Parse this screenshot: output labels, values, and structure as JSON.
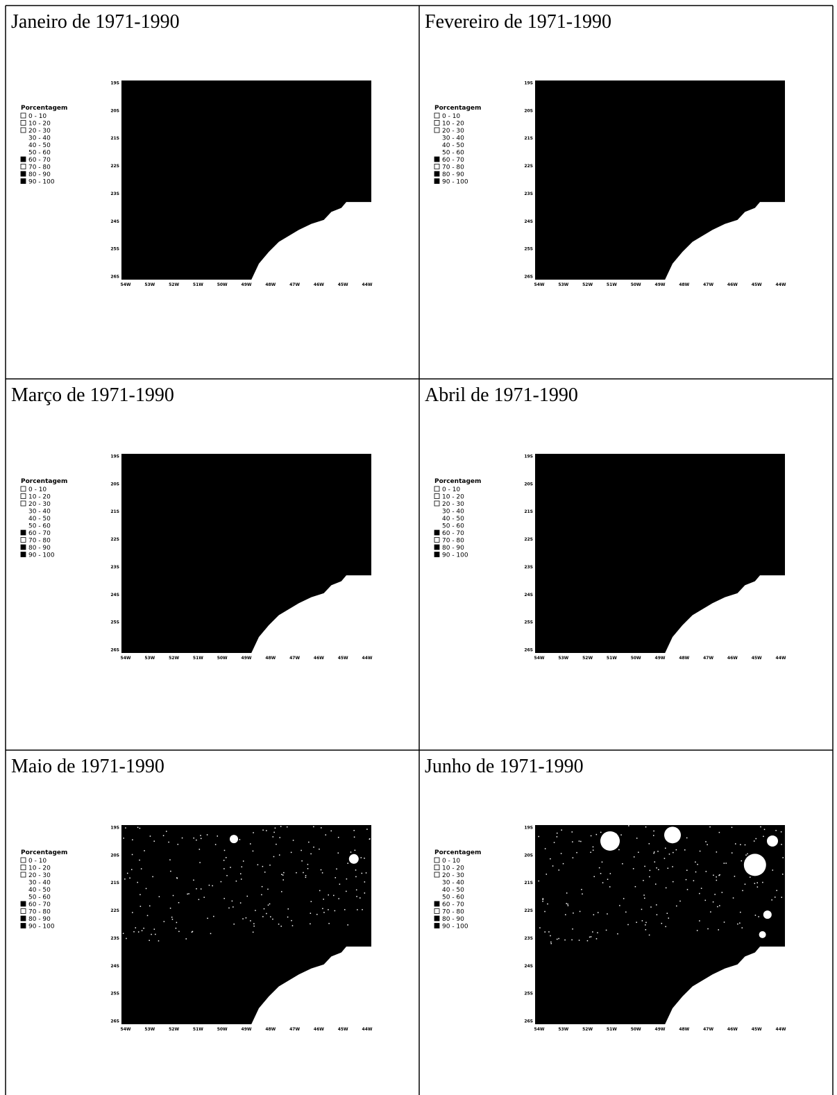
{
  "panels": [
    {
      "title": "Janeiro de 1971-1990"
    },
    {
      "title": "Fevereiro de 1971-1990"
    },
    {
      "title": "Março de 1971-1990"
    },
    {
      "title": "Abril de 1971-1990"
    },
    {
      "title": "Maio de 1971-1990"
    },
    {
      "title": "Junho de 1971-1990"
    }
  ],
  "legend": {
    "title": "Porcentagem",
    "classes": [
      "0 - 10",
      "10 - 20",
      "20 - 30",
      "30 - 40",
      "40 - 50",
      "50 - 60",
      "60 - 70",
      "70 - 80",
      "80 - 90",
      "90 - 100"
    ]
  },
  "axes": {
    "lat": [
      "19S",
      "20S",
      "21S",
      "22S",
      "23S",
      "24S",
      "25S",
      "26S"
    ],
    "lon": [
      "54W",
      "53W",
      "52W",
      "51W",
      "50W",
      "49W",
      "48W",
      "47W",
      "46W",
      "45W",
      "44W"
    ]
  }
}
